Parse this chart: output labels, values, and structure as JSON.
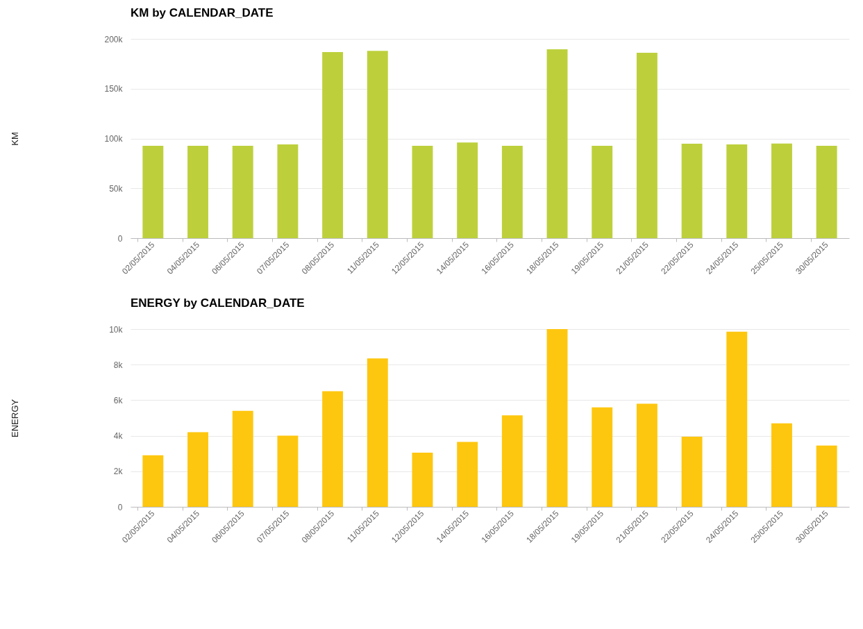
{
  "chart_data": [
    {
      "type": "bar",
      "title": "KM by CALENDAR_DATE",
      "ylabel": "KM",
      "categories": [
        "02/05/2015",
        "04/05/2015",
        "06/05/2015",
        "07/05/2015",
        "08/05/2015",
        "11/05/2015",
        "12/05/2015",
        "14/05/2015",
        "16/05/2015",
        "18/05/2015",
        "19/05/2015",
        "21/05/2015",
        "22/05/2015",
        "24/05/2015",
        "25/05/2015",
        "30/05/2015"
      ],
      "values": [
        92700,
        92700,
        92700,
        94000,
        186800,
        188000,
        92700,
        96000,
        92700,
        189500,
        92700,
        186000,
        94800,
        94000,
        95000,
        92700
      ],
      "color": "#bdd03c",
      "ylim": [
        0,
        200000
      ],
      "yticks": [
        0,
        {
          "value": 50000,
          "label": "50k"
        },
        {
          "value": 100000,
          "label": "100k"
        },
        {
          "value": 150000,
          "label": "150k"
        },
        {
          "value": 200000,
          "label": "200k"
        }
      ],
      "grid": "y"
    },
    {
      "type": "bar",
      "title": "ENERGY by CALENDAR_DATE",
      "ylabel": "ENERGY",
      "categories": [
        "02/05/2015",
        "04/05/2015",
        "06/05/2015",
        "07/05/2015",
        "08/05/2015",
        "11/05/2015",
        "12/05/2015",
        "14/05/2015",
        "16/05/2015",
        "18/05/2015",
        "19/05/2015",
        "21/05/2015",
        "22/05/2015",
        "24/05/2015",
        "25/05/2015",
        "30/05/2015"
      ],
      "values": [
        2900,
        4200,
        5400,
        4000,
        6500,
        8350,
        3050,
        3650,
        5150,
        10000,
        5600,
        5800,
        3950,
        9850,
        4700,
        3450
      ],
      "color": "#fec70f",
      "ylim": [
        0,
        10000
      ],
      "yticks": [
        0,
        {
          "value": 2000,
          "label": "2k"
        },
        {
          "value": 4000,
          "label": "4k"
        },
        {
          "value": 6000,
          "label": "6k"
        },
        {
          "value": 8000,
          "label": "8k"
        },
        {
          "value": 10000,
          "label": "10k"
        }
      ],
      "grid": "y"
    }
  ]
}
